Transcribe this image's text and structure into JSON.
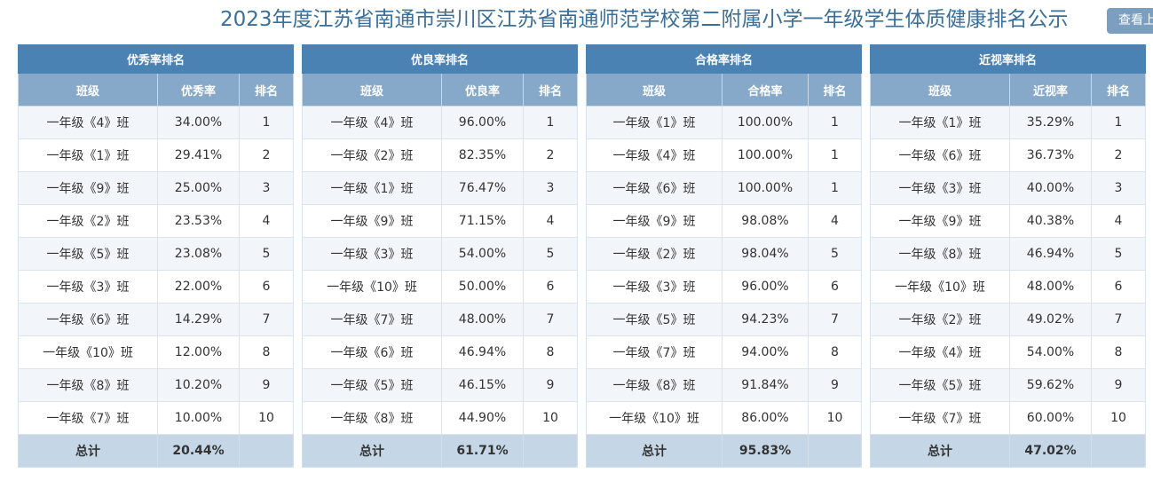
{
  "header": {
    "title": "2023年度江苏省南通市崇川区江苏省南通师范学校第二附属小学一年级学生体质健康排名公示",
    "view_button": "查看上"
  },
  "tables": [
    {
      "caption": "优秀率排名",
      "headers": [
        "班级",
        "优秀率",
        "排名"
      ],
      "rows": [
        [
          "一年级《4》班",
          "34.00%",
          "1"
        ],
        [
          "一年级《1》班",
          "29.41%",
          "2"
        ],
        [
          "一年级《9》班",
          "25.00%",
          "3"
        ],
        [
          "一年级《2》班",
          "23.53%",
          "4"
        ],
        [
          "一年级《5》班",
          "23.08%",
          "5"
        ],
        [
          "一年级《3》班",
          "22.00%",
          "6"
        ],
        [
          "一年级《6》班",
          "14.29%",
          "7"
        ],
        [
          "一年级《10》班",
          "12.00%",
          "8"
        ],
        [
          "一年级《8》班",
          "10.20%",
          "9"
        ],
        [
          "一年级《7》班",
          "10.00%",
          "10"
        ]
      ],
      "total": [
        "总计",
        "20.44%",
        ""
      ]
    },
    {
      "caption": "优良率排名",
      "headers": [
        "班级",
        "优良率",
        "排名"
      ],
      "rows": [
        [
          "一年级《4》班",
          "96.00%",
          "1"
        ],
        [
          "一年级《2》班",
          "82.35%",
          "2"
        ],
        [
          "一年级《1》班",
          "76.47%",
          "3"
        ],
        [
          "一年级《9》班",
          "71.15%",
          "4"
        ],
        [
          "一年级《3》班",
          "54.00%",
          "5"
        ],
        [
          "一年级《10》班",
          "50.00%",
          "6"
        ],
        [
          "一年级《7》班",
          "48.00%",
          "7"
        ],
        [
          "一年级《6》班",
          "46.94%",
          "8"
        ],
        [
          "一年级《5》班",
          "46.15%",
          "9"
        ],
        [
          "一年级《8》班",
          "44.90%",
          "10"
        ]
      ],
      "total": [
        "总计",
        "61.71%",
        ""
      ]
    },
    {
      "caption": "合格率排名",
      "headers": [
        "班级",
        "合格率",
        "排名"
      ],
      "rows": [
        [
          "一年级《1》班",
          "100.00%",
          "1"
        ],
        [
          "一年级《4》班",
          "100.00%",
          "1"
        ],
        [
          "一年级《6》班",
          "100.00%",
          "1"
        ],
        [
          "一年级《9》班",
          "98.08%",
          "4"
        ],
        [
          "一年级《2》班",
          "98.04%",
          "5"
        ],
        [
          "一年级《3》班",
          "96.00%",
          "6"
        ],
        [
          "一年级《5》班",
          "94.23%",
          "7"
        ],
        [
          "一年级《7》班",
          "94.00%",
          "8"
        ],
        [
          "一年级《8》班",
          "91.84%",
          "9"
        ],
        [
          "一年级《10》班",
          "86.00%",
          "10"
        ]
      ],
      "total": [
        "总计",
        "95.83%",
        ""
      ]
    },
    {
      "caption": "近视率排名",
      "headers": [
        "班级",
        "近视率",
        "排名"
      ],
      "rows": [
        [
          "一年级《1》班",
          "35.29%",
          "1"
        ],
        [
          "一年级《6》班",
          "36.73%",
          "2"
        ],
        [
          "一年级《3》班",
          "40.00%",
          "3"
        ],
        [
          "一年级《9》班",
          "40.38%",
          "4"
        ],
        [
          "一年级《8》班",
          "46.94%",
          "5"
        ],
        [
          "一年级《10》班",
          "48.00%",
          "6"
        ],
        [
          "一年级《2》班",
          "49.02%",
          "7"
        ],
        [
          "一年级《4》班",
          "54.00%",
          "8"
        ],
        [
          "一年级《5》班",
          "59.62%",
          "9"
        ],
        [
          "一年级《7》班",
          "60.00%",
          "10"
        ]
      ],
      "total": [
        "总计",
        "47.02%",
        ""
      ]
    }
  ]
}
